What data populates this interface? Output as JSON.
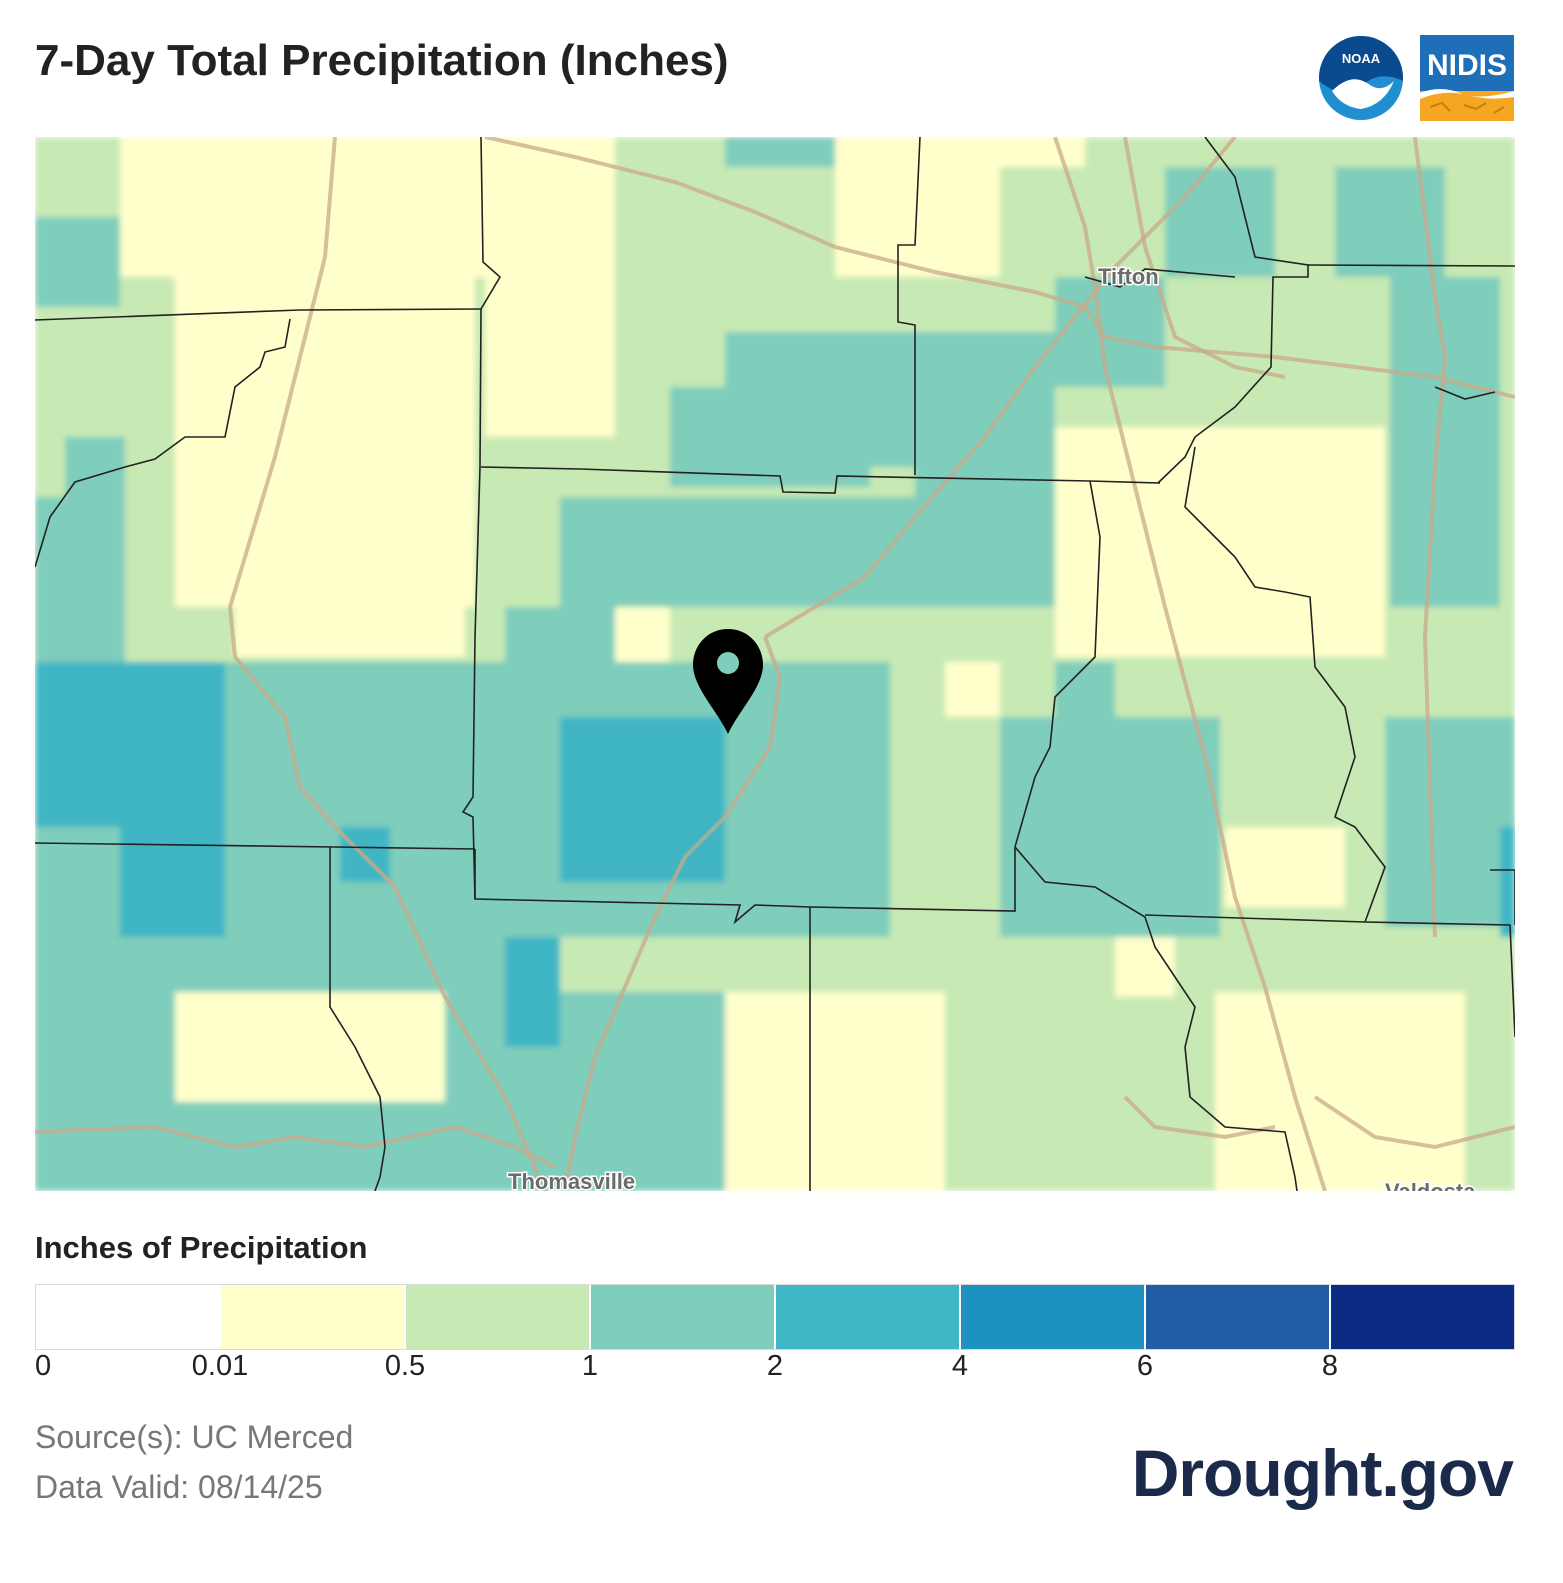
{
  "header": {
    "title": "7-Day Total Precipitation (Inches)"
  },
  "logos": {
    "noaa": "NOAA",
    "nidis": "NIDIS"
  },
  "map": {
    "place_labels": [
      "Tifton",
      "Thomasville",
      "Valdosta"
    ],
    "marker": "map-pin"
  },
  "legend": {
    "title": "Inches of Precipitation",
    "colors": [
      "#ffffff",
      "#ffffcc",
      "#c7e9b4",
      "#7fcdbb",
      "#41b6c4",
      "#1d91c0",
      "#225ea8",
      "#0c2c84"
    ],
    "ticks": [
      "0",
      "0.01",
      "0.5",
      "1",
      "2",
      "4",
      "6",
      "8"
    ]
  },
  "footer": {
    "source": "Source(s): UC Merced",
    "valid": "Data Valid: 08/14/25",
    "brand": "Drought.gov"
  }
}
